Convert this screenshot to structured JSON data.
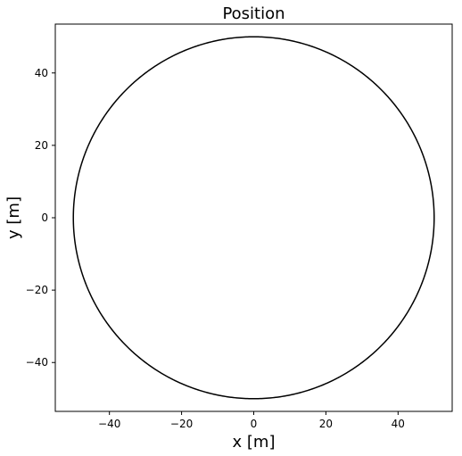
{
  "chart_data": {
    "type": "line",
    "title": "Position",
    "xlabel": "x [m]",
    "ylabel": "y [m]",
    "xlim": [
      -55,
      55
    ],
    "ylim": [
      -53.5,
      53.5
    ],
    "xticks": [
      -40,
      -20,
      0,
      20,
      40
    ],
    "yticks": [
      -40,
      -20,
      0,
      20,
      40
    ],
    "xtick_labels": [
      "−40",
      "−20",
      "0",
      "20",
      "40"
    ],
    "ytick_labels": [
      "−40",
      "−20",
      "0",
      "20",
      "40"
    ],
    "grid": false,
    "series": [
      {
        "shape": "circle",
        "center": [
          0,
          0
        ],
        "radius": 50,
        "color": "#000000"
      }
    ]
  }
}
